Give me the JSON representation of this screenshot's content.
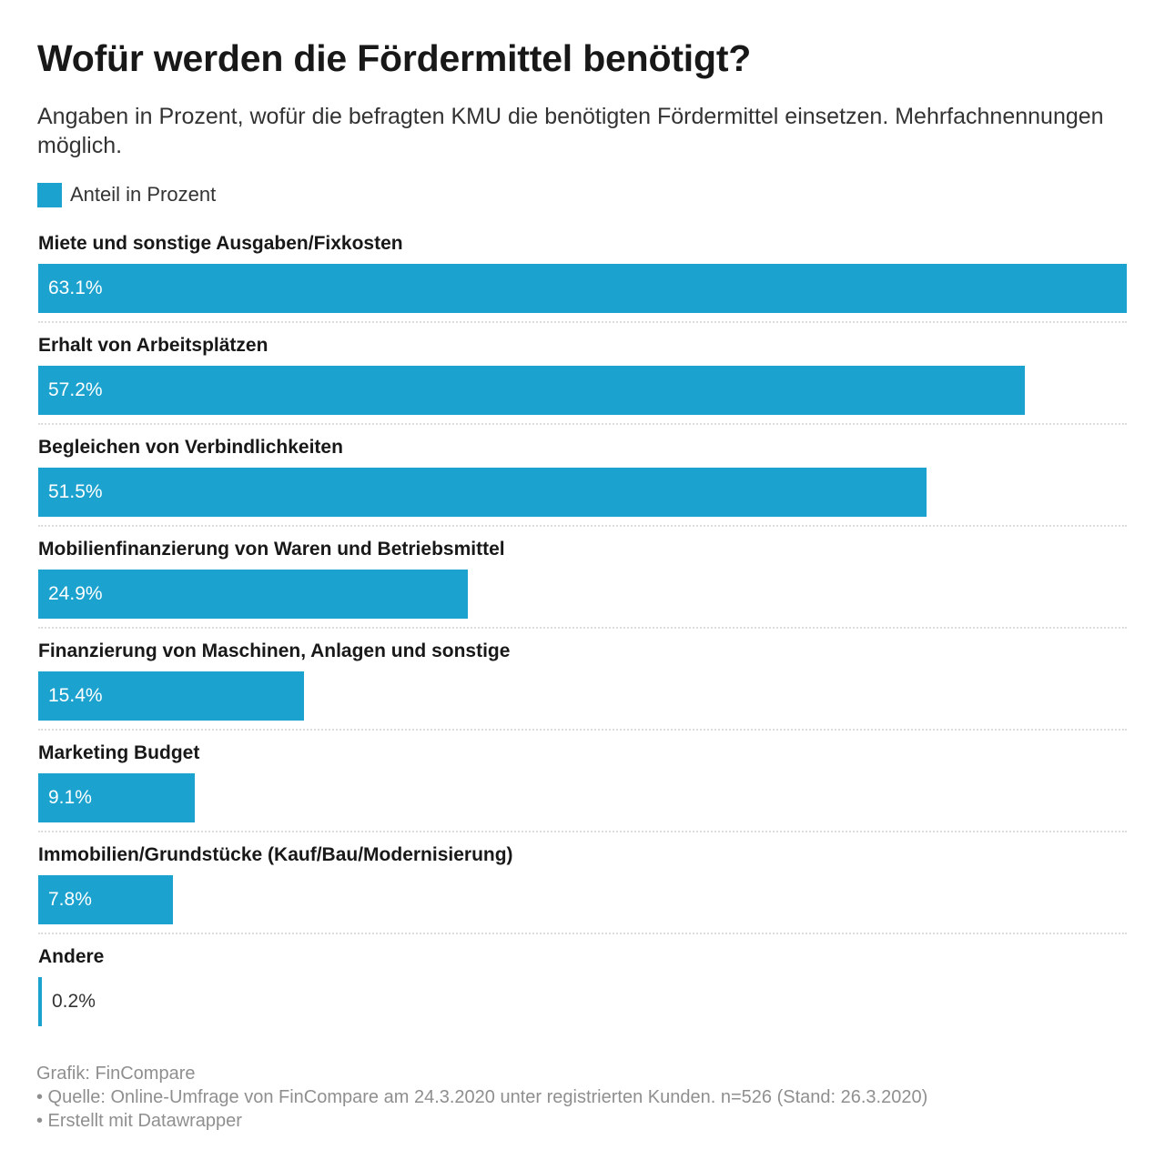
{
  "title": "Wofür werden die Fördermittel benötigt?",
  "subtitle": "Angaben in Prozent, wofür die befragten KMU die benötigten Fördermittel einsetzen. Mehrfachnennungen möglich.",
  "colors": {
    "bar": "#1ba2cf",
    "bar_text": "#ffffff",
    "outside_text": "#333333"
  },
  "legend": {
    "label": "Anteil in Prozent"
  },
  "chart_data": {
    "type": "bar",
    "orientation": "horizontal",
    "title": "Wofür werden die Fördermittel benötigt?",
    "series_name": "Anteil in Prozent",
    "xlim": [
      0,
      63.1
    ],
    "unit": "%",
    "categories": [
      "Miete und sonstige Ausgaben/Fixkosten",
      "Erhalt von Arbeitsplätzen",
      "Begleichen von Verbindlichkeiten",
      "Mobilienfinanzierung von Waren und Betriebsmittel",
      "Finanzierung von Maschinen, Anlagen und sonstige",
      "Marketing Budget",
      "Immobilien/Grundstücke (Kauf/Bau/Modernisierung)",
      "Andere"
    ],
    "values": [
      63.1,
      57.2,
      51.5,
      24.9,
      15.4,
      9.1,
      7.8,
      0.2
    ],
    "value_labels": [
      "63.1%",
      "57.2%",
      "51.5%",
      "24.9%",
      "15.4%",
      "9.1%",
      "7.8%",
      "0.2%"
    ]
  },
  "footer": {
    "credit": "Grafik: FinCompare",
    "source": "• Quelle: Online-Umfrage von FinCompare am 24.3.2020 unter registrierten Kunden. n=526 (Stand: 26.3.2020)",
    "tool": "• Erstellt mit Datawrapper"
  }
}
